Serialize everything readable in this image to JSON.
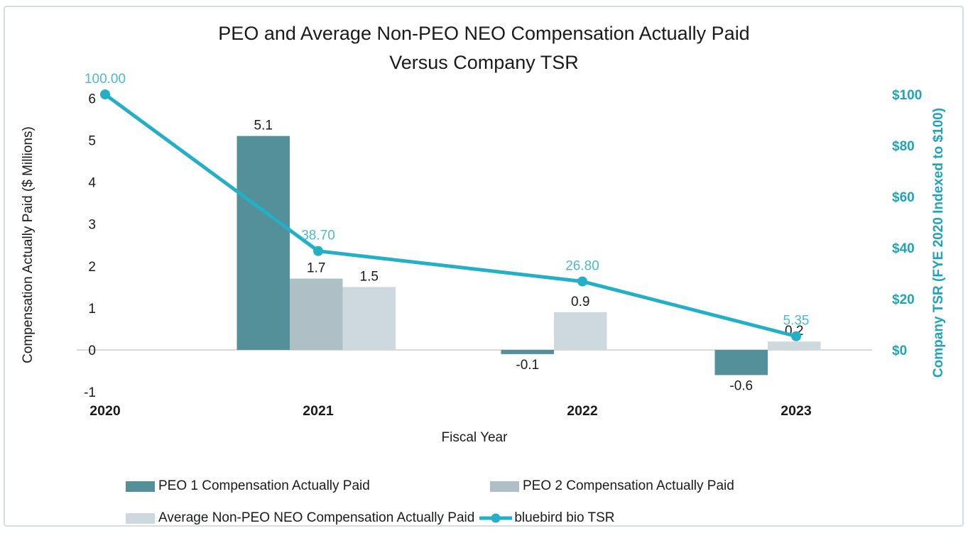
{
  "chart_data": {
    "type": "combo-bar-line",
    "title_line1": "PEO and Average Non-PEO NEO Compensation Actually Paid",
    "title_line2": "Versus Company TSR",
    "categories": [
      "2020",
      "2021",
      "2022",
      "2023"
    ],
    "xlabel": "Fiscal Year",
    "series": [
      {
        "name": "PEO 1 Compensation Actually Paid",
        "type": "bar",
        "color": "#54909a",
        "values": [
          null,
          5.1,
          -0.1,
          -0.6
        ],
        "labels": [
          "",
          "5.1",
          "-0.1",
          "-0.6"
        ]
      },
      {
        "name": "PEO 2 Compensation Actually Paid",
        "type": "bar",
        "color": "#aec0c6",
        "values": [
          null,
          1.7,
          null,
          null
        ],
        "labels": [
          "",
          "1.7",
          "",
          ""
        ]
      },
      {
        "name": "Average Non-PEO NEO Compensation Actually Paid",
        "type": "bar",
        "color": "#cdd9de",
        "values": [
          null,
          1.5,
          0.9,
          0.2
        ],
        "labels": [
          "",
          "1.5",
          "0.9",
          "0.2"
        ]
      },
      {
        "name": "bluebird bio TSR",
        "type": "line",
        "color": "#23b0c6",
        "label_color": "#4fb8cf",
        "values": [
          100.0,
          38.7,
          26.8,
          5.35
        ],
        "labels": [
          "100.00",
          "38.70",
          "26.80",
          "5.35"
        ]
      }
    ],
    "axes": {
      "left": {
        "title": "Compensation Actually Paid ($ Millions)",
        "ticks": [
          -1,
          0,
          1,
          2,
          3,
          4,
          5,
          6
        ],
        "tick_labels": [
          "-1",
          "0",
          "1",
          "2",
          "3",
          "4",
          "5",
          "6"
        ],
        "range": [
          -1,
          6
        ],
        "color": "#1a1a1a"
      },
      "right": {
        "title": "Company TSR (FYE 2020 Indexed to $100)",
        "ticks": [
          0,
          20,
          40,
          60,
          80,
          100
        ],
        "tick_labels": [
          "$0",
          "$20",
          "$40",
          "$60",
          "$80",
          "$100"
        ],
        "range": [
          0,
          100
        ],
        "color": "#1fa3b8"
      }
    },
    "gridline_color": "#d9d9d9",
    "legend_position": "bottom",
    "grid": "zero-line-only"
  }
}
